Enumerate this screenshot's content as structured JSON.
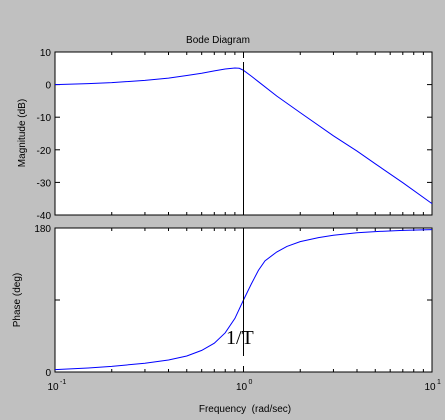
{
  "chart_data": [
    {
      "type": "line",
      "title": "Bode Diagram",
      "xlabel": "",
      "ylabel": "Magnitude (dB)",
      "xscale": "log",
      "xlim": [
        0.1,
        10
      ],
      "ylim": [
        -40,
        10
      ],
      "yticks": [
        "10",
        "0",
        "-10",
        "-20",
        "-30",
        "-40"
      ],
      "series": [
        {
          "color": "#0000ff",
          "x": [
            0.1,
            0.15,
            0.2,
            0.3,
            0.4,
            0.5,
            0.6,
            0.7,
            0.8,
            0.9,
            0.95,
            1.0,
            1.1,
            1.2,
            1.5,
            2,
            3,
            4,
            5,
            7,
            10
          ],
          "y": [
            0,
            0.3,
            0.6,
            1.3,
            2.0,
            2.8,
            3.5,
            4.2,
            4.8,
            5.1,
            5.0,
            4.4,
            2.6,
            0.9,
            -3.5,
            -8.6,
            -15.7,
            -20.4,
            -24.3,
            -30.1,
            -36.5
          ]
        }
      ]
    },
    {
      "type": "line",
      "xlabel": "Frequency  (rad/sec)",
      "ylabel": "Phase (deg)",
      "xscale": "log",
      "xlim": [
        0.1,
        10
      ],
      "ylim": [
        0,
        180
      ],
      "yticks": [
        "180",
        "0"
      ],
      "xticks": [
        "10",
        "10",
        "10"
      ],
      "xtick_exponents": [
        "-1",
        "0",
        "1"
      ],
      "series": [
        {
          "color": "#0000ff",
          "x": [
            0.1,
            0.15,
            0.2,
            0.3,
            0.4,
            0.5,
            0.6,
            0.7,
            0.8,
            0.9,
            1.0,
            1.1,
            1.2,
            1.3,
            1.5,
            1.7,
            2,
            2.5,
            3,
            4,
            5,
            7,
            10
          ],
          "y": [
            3,
            5,
            7,
            11,
            15,
            20,
            27,
            36,
            49,
            67,
            90,
            110,
            127,
            139,
            150,
            157,
            163,
            168,
            171,
            174,
            175.5,
            177,
            178
          ]
        }
      ]
    }
  ],
  "marker": {
    "x": 1,
    "label": "1/T"
  },
  "colors": {
    "figure_bg": "#c0c0c0",
    "axes_bg": "#ffffff",
    "line": "#0000ff",
    "marker": "#000000"
  }
}
